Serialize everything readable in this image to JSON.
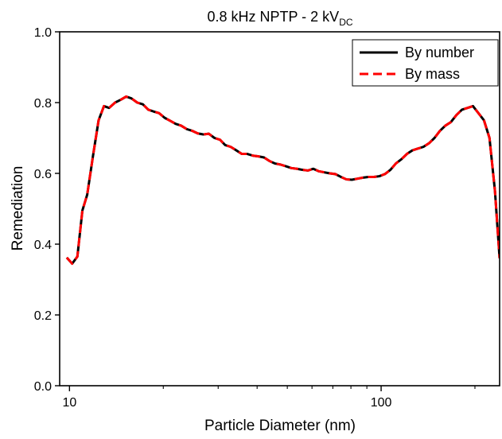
{
  "chart_data": {
    "type": "line",
    "title": "0.8 kHz NPTP - 2 kV",
    "title_subscript": "DC",
    "xlabel": "Particle Diameter (nm)",
    "ylabel": "Remediation",
    "x_scale": "log",
    "xlim": [
      9.3,
      240
    ],
    "ylim": [
      0.0,
      1.0
    ],
    "x_ticks": [
      10,
      100
    ],
    "x_tick_labels": [
      "10",
      "100"
    ],
    "y_ticks": [
      0.0,
      0.2,
      0.4,
      0.6,
      0.8,
      1.0
    ],
    "y_tick_labels": [
      "0.0",
      "0.2",
      "0.4",
      "0.6",
      "0.8",
      "1.0"
    ],
    "grid": false,
    "legend_position": "top-right",
    "series": [
      {
        "name": "By number",
        "color": "#000000",
        "dash": "solid",
        "x": [
          9.8,
          10.2,
          10.6,
          11.0,
          11.4,
          11.9,
          12.4,
          12.9,
          13.4,
          14.0,
          14.6,
          15.2,
          15.8,
          16.5,
          17.2,
          17.9,
          18.6,
          19.4,
          20.2,
          21.0,
          21.9,
          22.8,
          23.8,
          24.8,
          25.8,
          26.9,
          28.0,
          29.2,
          30.4,
          31.6,
          32.9,
          34.3,
          35.7,
          37.2,
          38.8,
          40.4,
          42.1,
          43.8,
          45.6,
          47.5,
          49.5,
          51.5,
          53.7,
          55.9,
          58.2,
          60.6,
          63.1,
          65.7,
          68.5,
          71.3,
          74.3,
          77.4,
          80.6,
          83.9,
          87.4,
          91.0,
          94.8,
          98.7,
          102.8,
          107.1,
          111.5,
          116.2,
          121.0,
          126.0,
          131.2,
          136.7,
          142.4,
          148.3,
          154.4,
          160.8,
          167.5,
          174.5,
          181.7,
          189.3,
          197.1,
          205.3,
          213.8,
          222.7,
          231.9,
          240.0
        ],
        "y": [
          0.362,
          0.345,
          0.365,
          0.495,
          0.54,
          0.65,
          0.75,
          0.79,
          0.785,
          0.8,
          0.808,
          0.817,
          0.812,
          0.8,
          0.795,
          0.78,
          0.775,
          0.77,
          0.757,
          0.749,
          0.74,
          0.735,
          0.725,
          0.72,
          0.713,
          0.71,
          0.712,
          0.7,
          0.695,
          0.68,
          0.675,
          0.665,
          0.655,
          0.655,
          0.65,
          0.648,
          0.645,
          0.635,
          0.628,
          0.625,
          0.62,
          0.615,
          0.613,
          0.61,
          0.608,
          0.613,
          0.606,
          0.603,
          0.6,
          0.598,
          0.59,
          0.583,
          0.582,
          0.585,
          0.588,
          0.59,
          0.59,
          0.592,
          0.598,
          0.61,
          0.628,
          0.64,
          0.655,
          0.665,
          0.67,
          0.675,
          0.685,
          0.7,
          0.72,
          0.735,
          0.745,
          0.765,
          0.78,
          0.785,
          0.79,
          0.77,
          0.75,
          0.7,
          0.55,
          0.36
        ]
      },
      {
        "name": "By mass",
        "color": "#ff0000",
        "dash": "dashed",
        "x": [
          9.8,
          10.2,
          10.6,
          11.0,
          11.4,
          11.9,
          12.4,
          12.9,
          13.4,
          14.0,
          14.6,
          15.2,
          15.8,
          16.5,
          17.2,
          17.9,
          18.6,
          19.4,
          20.2,
          21.0,
          21.9,
          22.8,
          23.8,
          24.8,
          25.8,
          26.9,
          28.0,
          29.2,
          30.4,
          31.6,
          32.9,
          34.3,
          35.7,
          37.2,
          38.8,
          40.4,
          42.1,
          43.8,
          45.6,
          47.5,
          49.5,
          51.5,
          53.7,
          55.9,
          58.2,
          60.6,
          63.1,
          65.7,
          68.5,
          71.3,
          74.3,
          77.4,
          80.6,
          83.9,
          87.4,
          91.0,
          94.8,
          98.7,
          102.8,
          107.1,
          111.5,
          116.2,
          121.0,
          126.0,
          131.2,
          136.7,
          142.4,
          148.3,
          154.4,
          160.8,
          167.5,
          174.5,
          181.7,
          189.3,
          197.1,
          205.3,
          213.8,
          222.7,
          231.9,
          240.0
        ],
        "y": [
          0.362,
          0.345,
          0.365,
          0.495,
          0.54,
          0.65,
          0.75,
          0.79,
          0.785,
          0.8,
          0.808,
          0.817,
          0.812,
          0.8,
          0.795,
          0.78,
          0.775,
          0.77,
          0.757,
          0.749,
          0.74,
          0.735,
          0.725,
          0.72,
          0.713,
          0.71,
          0.712,
          0.7,
          0.695,
          0.68,
          0.675,
          0.665,
          0.655,
          0.655,
          0.65,
          0.648,
          0.645,
          0.635,
          0.628,
          0.625,
          0.62,
          0.615,
          0.613,
          0.61,
          0.608,
          0.613,
          0.606,
          0.603,
          0.6,
          0.598,
          0.59,
          0.583,
          0.582,
          0.585,
          0.588,
          0.59,
          0.59,
          0.592,
          0.598,
          0.61,
          0.628,
          0.64,
          0.655,
          0.665,
          0.67,
          0.675,
          0.685,
          0.7,
          0.72,
          0.735,
          0.745,
          0.765,
          0.78,
          0.785,
          0.79,
          0.77,
          0.75,
          0.7,
          0.55,
          0.36
        ]
      }
    ]
  }
}
